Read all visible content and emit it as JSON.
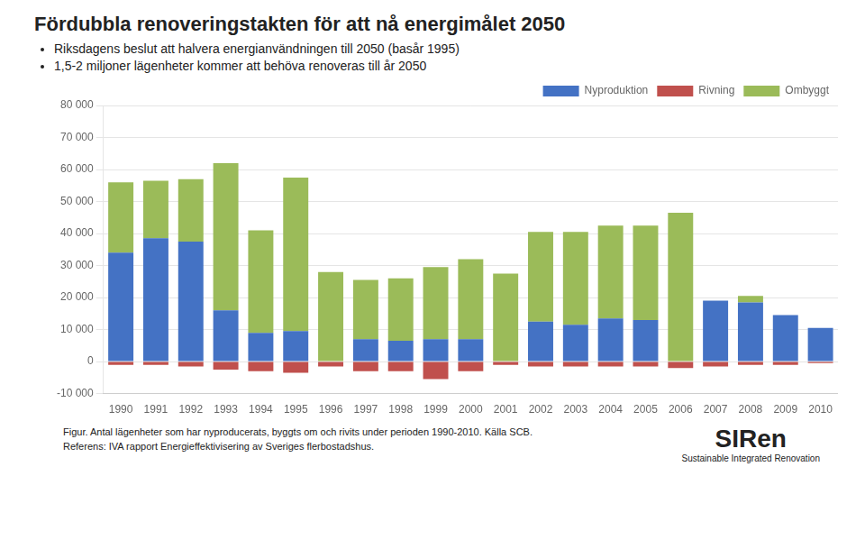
{
  "chart_data": {
    "type": "bar",
    "title": "Fördubbla renoveringstakten för att nå energimålet 2050",
    "annotations": [
      "Riksdagens beslut att halvera energianvändningen till 2050 (basår 1995)",
      "1,5-2 miljoner lägenheter kommer att behöva renoveras till år 2050",
      "Figur. Antal lägenheter som har nyproducerats, byggts om och rivits under perioden 1990-2010. Källa SCB.",
      "Referens: IVA rapport Energieffektivisering av Sveriges flerbostadshus.",
      "SIRen",
      "Sustainable Integrated Renovation"
    ],
    "categories": [
      1990,
      1991,
      1992,
      1993,
      1994,
      1995,
      1996,
      1997,
      1998,
      1999,
      2000,
      2001,
      2002,
      2003,
      2004,
      2005,
      2006,
      2007,
      2008,
      2009,
      2010
    ],
    "series": [
      {
        "name": "Nyproduktion",
        "color": "#4472C4",
        "values": [
          34000,
          38500,
          37500,
          16000,
          9000,
          9500,
          0,
          7000,
          6500,
          7000,
          7000,
          0,
          12500,
          11500,
          13500,
          13000,
          0,
          19000,
          18500,
          14500,
          10500
        ]
      },
      {
        "name": "Rivning",
        "color": "#C0504D",
        "values": [
          -1000,
          -1000,
          -1500,
          -2500,
          -3000,
          -3500,
          -1500,
          -3000,
          -3000,
          -5500,
          -3000,
          -1000,
          -1500,
          -1500,
          -1500,
          -1500,
          -2000,
          -1500,
          -1000,
          -1000,
          -500
        ]
      },
      {
        "name": "Ombyggt",
        "color": "#9BBB59",
        "values": [
          22000,
          18000,
          19500,
          46000,
          32000,
          48000,
          28000,
          18500,
          19500,
          22500,
          25000,
          27500,
          28000,
          29000,
          29000,
          29500,
          46500,
          0,
          2000,
          0,
          0
        ]
      }
    ],
    "stacked": true,
    "ylim": [
      -10000,
      80000
    ],
    "yticks": [
      {
        "value": -10000,
        "label": "-10 000"
      },
      0,
      {
        "value": 10000,
        "label": "10 000"
      },
      {
        "value": 20000,
        "label": "20 000"
      },
      {
        "value": 30000,
        "label": "30 000"
      },
      {
        "value": 40000,
        "label": "40 000"
      },
      {
        "value": 50000,
        "label": "50 000"
      },
      {
        "value": 60000,
        "label": "60 000"
      },
      {
        "value": 70000,
        "label": "70 000"
      },
      {
        "value": 80000,
        "label": "80 000"
      }
    ],
    "grid": true,
    "legend": "upper right"
  }
}
